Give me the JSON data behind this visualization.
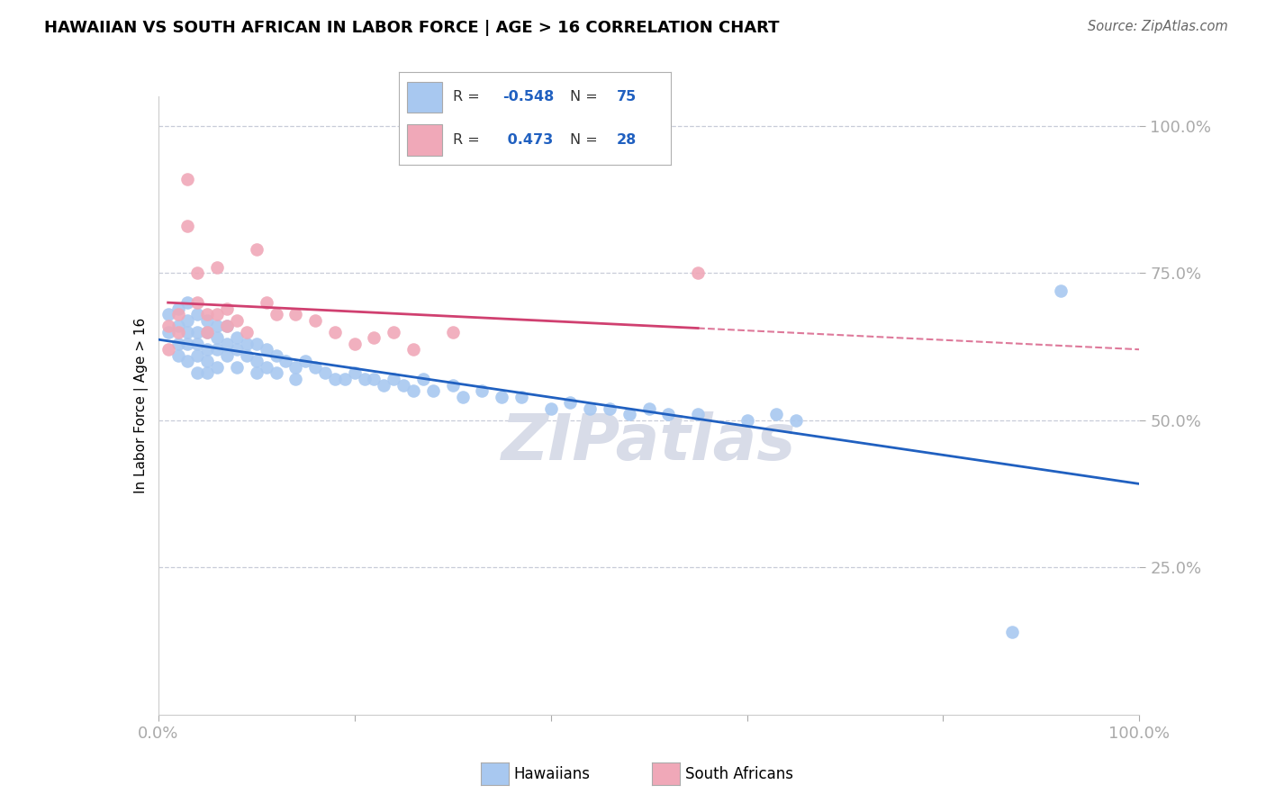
{
  "title": "HAWAIIAN VS SOUTH AFRICAN IN LABOR FORCE | AGE > 16 CORRELATION CHART",
  "source": "Source: ZipAtlas.com",
  "ylabel": "In Labor Force | Age > 16",
  "legend_blue_R": "-0.548",
  "legend_blue_N": "75",
  "legend_pink_R": "0.473",
  "legend_pink_N": "28",
  "blue_scatter_color": "#a8c8f0",
  "pink_scatter_color": "#f0a8b8",
  "blue_line_color": "#2060c0",
  "pink_line_color": "#d04070",
  "grid_color": "#c8ccd8",
  "watermark_color": "#d8dce8",
  "hawaiians_x": [
    0.01,
    0.01,
    0.02,
    0.02,
    0.02,
    0.02,
    0.03,
    0.03,
    0.03,
    0.03,
    0.03,
    0.04,
    0.04,
    0.04,
    0.04,
    0.04,
    0.05,
    0.05,
    0.05,
    0.05,
    0.05,
    0.06,
    0.06,
    0.06,
    0.06,
    0.07,
    0.07,
    0.07,
    0.08,
    0.08,
    0.08,
    0.09,
    0.09,
    0.1,
    0.1,
    0.1,
    0.11,
    0.11,
    0.12,
    0.12,
    0.13,
    0.14,
    0.14,
    0.15,
    0.16,
    0.17,
    0.18,
    0.19,
    0.2,
    0.21,
    0.22,
    0.23,
    0.24,
    0.25,
    0.26,
    0.27,
    0.28,
    0.3,
    0.31,
    0.33,
    0.35,
    0.37,
    0.4,
    0.42,
    0.44,
    0.46,
    0.48,
    0.5,
    0.52,
    0.55,
    0.6,
    0.63,
    0.65,
    0.87,
    0.92
  ],
  "hawaiians_y": [
    0.68,
    0.65,
    0.69,
    0.66,
    0.63,
    0.61,
    0.7,
    0.67,
    0.65,
    0.63,
    0.6,
    0.68,
    0.65,
    0.63,
    0.61,
    0.58,
    0.67,
    0.65,
    0.62,
    0.6,
    0.58,
    0.66,
    0.64,
    0.62,
    0.59,
    0.66,
    0.63,
    0.61,
    0.64,
    0.62,
    0.59,
    0.63,
    0.61,
    0.63,
    0.6,
    0.58,
    0.62,
    0.59,
    0.61,
    0.58,
    0.6,
    0.59,
    0.57,
    0.6,
    0.59,
    0.58,
    0.57,
    0.57,
    0.58,
    0.57,
    0.57,
    0.56,
    0.57,
    0.56,
    0.55,
    0.57,
    0.55,
    0.56,
    0.54,
    0.55,
    0.54,
    0.54,
    0.52,
    0.53,
    0.52,
    0.52,
    0.51,
    0.52,
    0.51,
    0.51,
    0.5,
    0.51,
    0.5,
    0.14,
    0.72
  ],
  "south_africans_x": [
    0.01,
    0.01,
    0.02,
    0.02,
    0.03,
    0.03,
    0.04,
    0.04,
    0.05,
    0.05,
    0.06,
    0.06,
    0.07,
    0.07,
    0.08,
    0.09,
    0.1,
    0.11,
    0.12,
    0.14,
    0.16,
    0.18,
    0.2,
    0.22,
    0.24,
    0.26,
    0.3,
    0.55
  ],
  "south_africans_y": [
    0.66,
    0.62,
    0.68,
    0.65,
    0.91,
    0.83,
    0.75,
    0.7,
    0.68,
    0.65,
    0.76,
    0.68,
    0.69,
    0.66,
    0.67,
    0.65,
    0.79,
    0.7,
    0.68,
    0.68,
    0.67,
    0.65,
    0.63,
    0.64,
    0.65,
    0.62,
    0.65,
    0.75
  ],
  "xlim": [
    0.0,
    1.0
  ],
  "ylim": [
    0.0,
    1.05
  ],
  "xticks": [
    0.0,
    0.2,
    0.4,
    0.6,
    0.8,
    1.0
  ],
  "xticklabels": [
    "0.0%",
    "",
    "",
    "",
    "",
    "100.0%"
  ],
  "yticks": [
    0.25,
    0.5,
    0.75,
    1.0
  ],
  "yticklabels": [
    "25.0%",
    "50.0%",
    "75.0%",
    "100.0%"
  ]
}
